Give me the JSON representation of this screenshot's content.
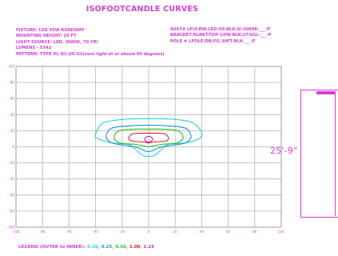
{
  "title": "ISOFOOTCANDLE CURVES",
  "info_left": [
    "FIXTURE: LED 50W ROADWAY",
    "MOUNTING HEIGHT: 25 FT",
    "LIGHT SOURCE: LED, 3000K, 70 CRI",
    "LUMENS - 5342",
    "PATTERN: TYPE III, B1-U0-G1(zero light at or above 90 degrees)"
  ],
  "info_right": [
    "ASSY# LFIX-RW-LED-50-BLK-III-3000K-___-P",
    "BRACKET RLBKT-TOP-14IN-BLK-2T-SGL-___-P",
    "POLE # LPOLE-DB-FG-30FT-BLK-___-P"
  ],
  "legend": {
    "label": "LEGEND (OUTER to INNER):",
    "items": [
      {
        "value": "0.10",
        "color": "#19d6e0"
      },
      {
        "value": "0.25",
        "color": "#1a8fe0"
      },
      {
        "value": "0.50",
        "color": "#22c022"
      },
      {
        "value": "1.00",
        "color": "#e02020"
      },
      {
        "value": "1.25",
        "color": "#c428c4"
      }
    ]
  },
  "pole": {
    "dimension_label": "25'-9\""
  },
  "chart_data": {
    "type": "isofootcandle-contour",
    "units": "feet (mounting height multiples)",
    "x_ticks": [
      "-100",
      "-80",
      "-60",
      "-40",
      "-20",
      "0",
      "20",
      "40",
      "60",
      "80",
      "100"
    ],
    "y_ticks": [
      "100",
      "80",
      "60",
      "40",
      "20",
      "0",
      "-20",
      "-40",
      "-60",
      "-80",
      "-100"
    ],
    "xlim": [
      -100,
      100
    ],
    "ylim": [
      -100,
      100
    ],
    "grid": true,
    "contours": [
      {
        "level": 0.1,
        "color": "#19d6e0",
        "points": [
          [
            -40,
            15
          ],
          [
            -35,
            29
          ],
          [
            -20,
            34
          ],
          [
            0,
            35
          ],
          [
            20,
            34
          ],
          [
            33,
            30
          ],
          [
            40,
            18
          ],
          [
            38,
            10
          ],
          [
            28,
            5
          ],
          [
            15,
            3
          ],
          [
            10,
            -3
          ],
          [
            5,
            -10
          ],
          [
            0,
            -12
          ],
          [
            -5,
            -10
          ],
          [
            -10,
            -3
          ],
          [
            -15,
            3
          ],
          [
            -28,
            5
          ],
          [
            -38,
            10
          ]
        ]
      },
      {
        "level": 0.25,
        "color": "#1a8fe0",
        "points": [
          [
            -32,
            13
          ],
          [
            -28,
            23
          ],
          [
            -15,
            26
          ],
          [
            0,
            27
          ],
          [
            15,
            26
          ],
          [
            28,
            23
          ],
          [
            32,
            13
          ],
          [
            28,
            5
          ],
          [
            18,
            2
          ],
          [
            8,
            -1
          ],
          [
            3,
            -5
          ],
          [
            0,
            -6
          ],
          [
            -3,
            -5
          ],
          [
            -8,
            -1
          ],
          [
            -18,
            2
          ],
          [
            -28,
            5
          ]
        ]
      },
      {
        "level": 0.5,
        "color": "#22c022",
        "points": [
          [
            -26,
            12
          ],
          [
            -22,
            20
          ],
          [
            -10,
            22
          ],
          [
            0,
            22
          ],
          [
            10,
            22
          ],
          [
            22,
            20
          ],
          [
            26,
            12
          ],
          [
            22,
            5
          ],
          [
            10,
            3
          ],
          [
            3,
            1
          ],
          [
            0,
            0
          ],
          [
            -3,
            1
          ],
          [
            -10,
            3
          ],
          [
            -22,
            5
          ]
        ]
      },
      {
        "level": 1.0,
        "color": "#e02020",
        "points": [
          [
            -15,
            10
          ],
          [
            -12,
            16
          ],
          [
            0,
            17
          ],
          [
            12,
            16
          ],
          [
            15,
            10
          ],
          [
            12,
            7
          ],
          [
            4,
            6
          ],
          [
            0,
            5
          ],
          [
            -4,
            6
          ],
          [
            -12,
            7
          ]
        ]
      },
      {
        "level": 1.25,
        "color": "#c428c4",
        "points": [
          [
            -3,
            9
          ],
          [
            -2,
            12
          ],
          [
            0,
            13
          ],
          [
            2,
            12
          ],
          [
            3,
            9
          ],
          [
            2,
            7
          ],
          [
            0,
            6
          ],
          [
            -2,
            7
          ]
        ]
      }
    ]
  }
}
